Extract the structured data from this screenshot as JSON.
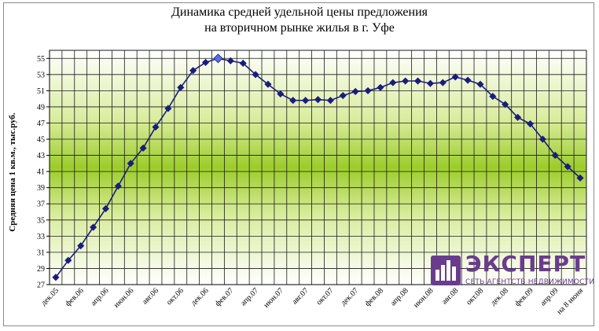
{
  "chart_data": {
    "type": "line",
    "title_lines": [
      "Динамика средней удельной цены предложения",
      "на вторичном рынке жилья в г. Уфе"
    ],
    "ylabel": "Средняя цена 1 кв.м., тыс.руб.",
    "xlabel": "",
    "ylim": [
      27,
      56
    ],
    "yticks": [
      27,
      29,
      31,
      33,
      35,
      37,
      39,
      41,
      43,
      45,
      47,
      49,
      51,
      53,
      55
    ],
    "x_tick_labels": [
      {
        "i": 0,
        "label": "дек.05"
      },
      {
        "i": 2,
        "label": "фев.06"
      },
      {
        "i": 4,
        "label": "апр.06"
      },
      {
        "i": 6,
        "label": "июн.06"
      },
      {
        "i": 8,
        "label": "авг.06"
      },
      {
        "i": 10,
        "label": "окт.06"
      },
      {
        "i": 12,
        "label": "дек.06"
      },
      {
        "i": 14,
        "label": "фев.07"
      },
      {
        "i": 16,
        "label": "апр.07"
      },
      {
        "i": 18,
        "label": "июн.07"
      },
      {
        "i": 20,
        "label": "авг.07"
      },
      {
        "i": 22,
        "label": "окт.07"
      },
      {
        "i": 24,
        "label": "дек.07"
      },
      {
        "i": 26,
        "label": "фев.08"
      },
      {
        "i": 28,
        "label": "апр.08"
      },
      {
        "i": 30,
        "label": "июн.08"
      },
      {
        "i": 32,
        "label": "авг.08"
      },
      {
        "i": 34,
        "label": "окт.08"
      },
      {
        "i": 36,
        "label": "дек.08"
      },
      {
        "i": 38,
        "label": "фев.09"
      },
      {
        "i": 40,
        "label": "апр.09"
      },
      {
        "i": 42,
        "label": "на 8 июня"
      }
    ],
    "series": [
      {
        "values": [
          27.9,
          30.0,
          31.8,
          34.1,
          36.4,
          39.2,
          42.0,
          43.9,
          46.5,
          48.8,
          51.4,
          53.5,
          54.5,
          55.0,
          54.7,
          54.4,
          53.0,
          51.8,
          50.6,
          49.8,
          49.8,
          49.9,
          49.8,
          50.4,
          50.9,
          51.0,
          51.4,
          52.0,
          52.2,
          52.2,
          51.9,
          52.0,
          52.7,
          52.3,
          51.8,
          50.3,
          49.3,
          47.7,
          46.9,
          45.0,
          43.0,
          41.6,
          40.2
        ],
        "color": "#1c1c7c",
        "highlight_index": 13
      }
    ],
    "grid": true,
    "background_gradient": [
      "#ffffff",
      "#d8ec9c",
      "#9ccc2a",
      "#d8ec9c",
      "#ffffff"
    ]
  },
  "logo": {
    "name": "ЭКСПЕРТ",
    "subtitle": "СЕТЬ АГЕНТСТВ НЕДВИЖИМОСТИ",
    "color": "#6a3c8c"
  }
}
